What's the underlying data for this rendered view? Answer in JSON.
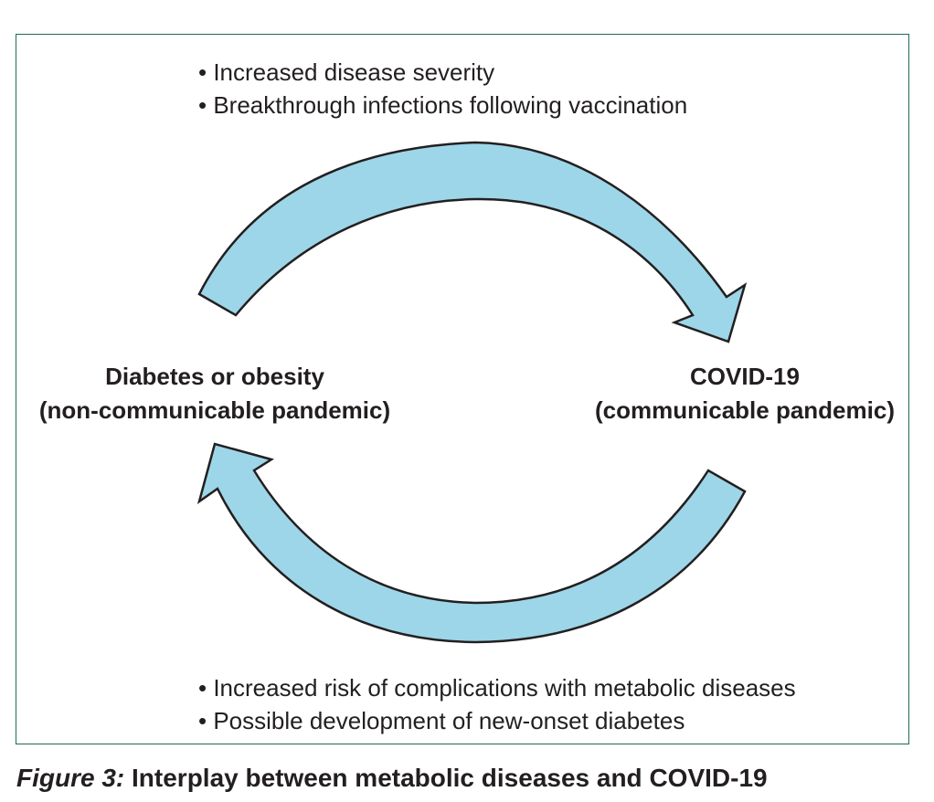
{
  "top_bullets": [
    "Increased disease severity",
    "Breakthrough infections following vaccination"
  ],
  "bottom_bullets": [
    "Increased risk of complications with metabolic diseases",
    "Possible development of new-onset diabetes"
  ],
  "left_node": {
    "line1": "Diabetes or obesity",
    "line2": "(non-communicable pandemic)"
  },
  "right_node": {
    "line1": "COVID-19",
    "line2": "(communicable pandemic)"
  },
  "caption": {
    "figure_label": "Figure 3:",
    "text": " Interplay between metabolic diseases and COVID-19"
  },
  "colors": {
    "arrow_fill": "#9dd6e8",
    "arrow_stroke": "#231f20",
    "frame": "#1f6b5a"
  }
}
